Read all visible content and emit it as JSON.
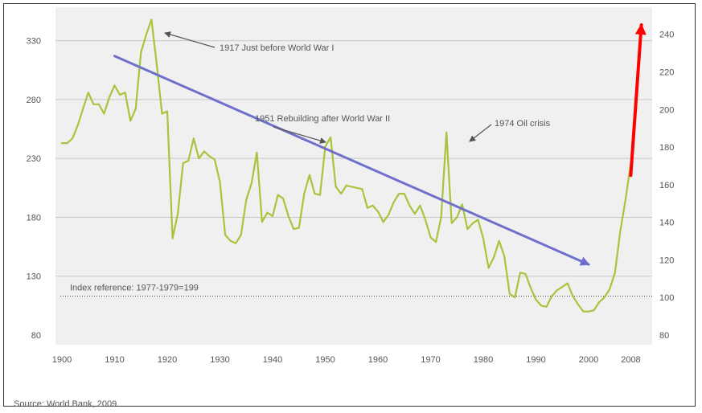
{
  "chart_data": {
    "type": "line",
    "source": "Source: World Bank, 2009",
    "x_ticks": [
      "1900",
      "1910",
      "1920",
      "1930",
      "1940",
      "1950",
      "1960",
      "1970",
      "1980",
      "1990",
      "2000",
      "2008"
    ],
    "xlim": [
      1900,
      2009
    ],
    "y_left": {
      "ticks": [
        80,
        130,
        180,
        230,
        280,
        330
      ],
      "ylim": [
        80,
        355
      ]
    },
    "y_right": {
      "ticks": [
        80,
        100,
        120,
        140,
        160,
        180,
        200,
        220,
        240
      ],
      "ylim": [
        80,
        245
      ]
    },
    "grid": true,
    "reference_line": {
      "label": "Index reference: 1977-1979=199",
      "value": 113
    },
    "series": [
      {
        "color": "#a8c43c",
        "axis": "left",
        "x": [
          1900,
          1901,
          1902,
          1903,
          1904,
          1905,
          1906,
          1907,
          1908,
          1909,
          1910,
          1911,
          1912,
          1913,
          1914,
          1915,
          1916,
          1917,
          1918,
          1919,
          1920,
          1921,
          1922,
          1923,
          1924,
          1925,
          1926,
          1927,
          1928,
          1929,
          1930,
          1931,
          1932,
          1933,
          1934,
          1935,
          1936,
          1937,
          1938,
          1939,
          1940,
          1941,
          1942,
          1943,
          1944,
          1945,
          1946,
          1947,
          1948,
          1949,
          1950,
          1951,
          1952,
          1953,
          1954,
          1955,
          1956,
          1957,
          1958,
          1959,
          1960,
          1961,
          1962,
          1963,
          1964,
          1965,
          1966,
          1967,
          1968,
          1969,
          1970,
          1971,
          1972,
          1973,
          1974,
          1975,
          1976,
          1977,
          1978,
          1979,
          1980,
          1981,
          1982,
          1983,
          1984,
          1985,
          1986,
          1987,
          1988,
          1989,
          1990,
          1991,
          1992,
          1993,
          1994,
          1995,
          1996,
          1997,
          1998,
          1999,
          2000,
          2001,
          2002,
          2003,
          2004,
          2005,
          2006,
          2007,
          2008
        ],
        "values": [
          243,
          243,
          247,
          258,
          272,
          286,
          276,
          276,
          268,
          282,
          292,
          284,
          286,
          262,
          272,
          320,
          335,
          348,
          310,
          268,
          270,
          162,
          183,
          226,
          228,
          247,
          230,
          236,
          232,
          229,
          210,
          165,
          160,
          158,
          165,
          195,
          209,
          235,
          176,
          184,
          181,
          199,
          196,
          181,
          170,
          171,
          200,
          216,
          200,
          199,
          240,
          248,
          206,
          200,
          207,
          206,
          205,
          204,
          188,
          190,
          185,
          176,
          182,
          193,
          200,
          200,
          190,
          183,
          190,
          178,
          163,
          159,
          180,
          252,
          175,
          180,
          191,
          170,
          175,
          178,
          162,
          137,
          146,
          160,
          147,
          115,
          112,
          133,
          132,
          120,
          110,
          105,
          104,
          113,
          118,
          121,
          124,
          113,
          106,
          100,
          100,
          101,
          108,
          112,
          119,
          133,
          168,
          195,
          226
        ]
      },
      {
        "color": "#6f6fcc",
        "axis": "left",
        "x": [
          1910,
          2000
        ],
        "values": [
          317,
          140
        ]
      },
      {
        "color": "#ff0000",
        "axis": "right",
        "x": [
          2008,
          2010
        ],
        "values": [
          165,
          245
        ]
      }
    ],
    "annotations": [
      {
        "text": "1917 Just before World War I"
      },
      {
        "text": "1951 Rebuilding after World War II"
      },
      {
        "text": "1974 Oil crisis"
      }
    ]
  }
}
